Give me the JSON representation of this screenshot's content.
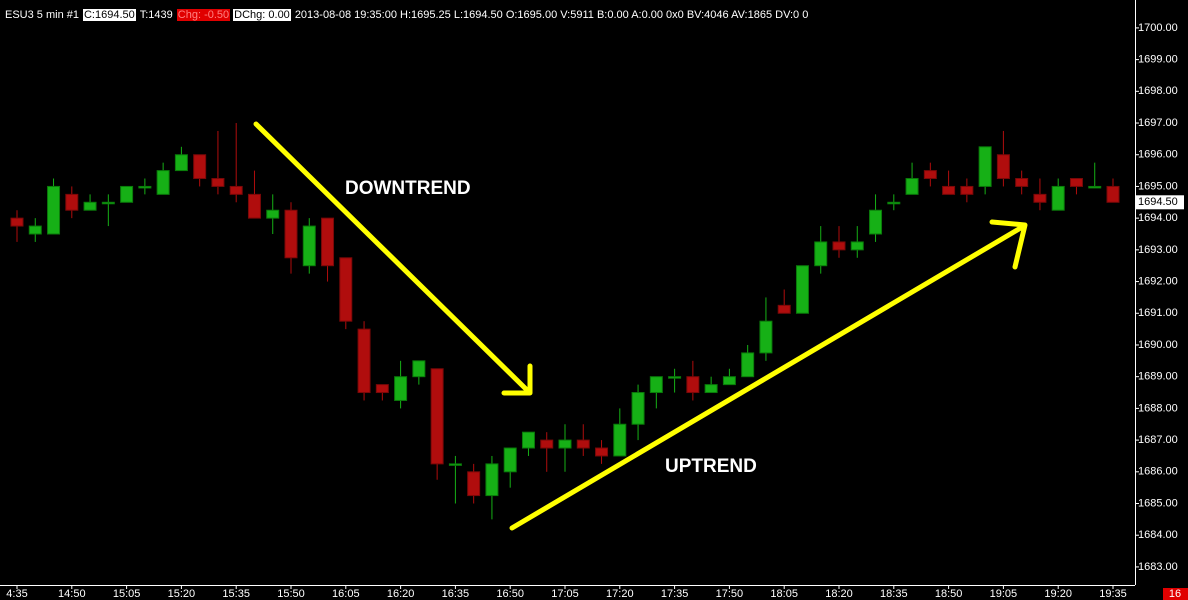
{
  "chart_data": {
    "type": "candlestick",
    "header": {
      "symbol": "ESU3  5 min  #1",
      "close": "C:1694.50",
      "ticks": "T:1439",
      "change": "Chg: -0.50",
      "dchange": "DChg: 0.00",
      "info": "2013-08-08 19:35:00 H:1695.25 L:1694.50 O:1695.00 V:5911 B:0.00 A:0.00 0x0 BV:4046 AV:1865 DV:0 0"
    },
    "annotations": [
      "DOWNTREND",
      "UPTREND"
    ],
    "categories": [
      "4:35",
      null,
      null,
      "14:50",
      null,
      null,
      "15:05",
      null,
      null,
      "15:20",
      null,
      null,
      "15:35",
      null,
      null,
      "15:50",
      null,
      null,
      "16:05",
      null,
      null,
      "16:20",
      null,
      null,
      "16:35",
      null,
      null,
      "16:50",
      null,
      null,
      "17:05",
      null,
      null,
      "17:20",
      null,
      null,
      "17:35",
      null,
      null,
      "17:50",
      null,
      null,
      "18:05",
      null,
      null,
      "18:20",
      null,
      null,
      "18:35",
      null,
      null,
      "18:50",
      null,
      null,
      "19:05",
      null,
      null,
      "19:20",
      null,
      null,
      "19:35"
    ],
    "open": [
      1694.0,
      1693.5,
      1693.5,
      1694.75,
      1694.25,
      1694.5,
      1694.5,
      1695.0,
      1694.75,
      1695.5,
      1696.0,
      1695.25,
      1695.0,
      1694.75,
      1694.0,
      1694.25,
      1692.5,
      1694.0,
      1692.75,
      1690.5,
      1688.75,
      1688.25,
      1689.0,
      1689.25,
      1686.25,
      1686.0,
      1685.25,
      1686.0,
      1686.75,
      1687.0,
      1686.75,
      1687.0,
      1686.75,
      1686.5,
      1687.5,
      1688.5,
      1689.0,
      1689.0,
      1688.5,
      1688.75,
      1689.0,
      1689.75,
      1691.25,
      1691.0,
      1692.5,
      1693.25,
      1693.0,
      1693.5,
      1694.5,
      1694.75,
      1695.5,
      1695.0,
      1695.0,
      1695.0,
      1696.0,
      1695.25,
      1694.75,
      1694.25,
      1695.25,
      1695.0,
      1695.0
    ],
    "high": [
      1694.25,
      1694.0,
      1695.25,
      1695.0,
      1694.75,
      1694.75,
      1695.0,
      1695.25,
      1695.75,
      1696.25,
      1696.0,
      1696.75,
      1697.0,
      1695.5,
      1694.75,
      1694.5,
      1694.0,
      1694.0,
      1692.75,
      1690.75,
      1688.75,
      1689.5,
      1689.5,
      1689.25,
      1686.5,
      1686.25,
      1686.5,
      1686.75,
      1687.25,
      1687.25,
      1687.5,
      1687.5,
      1687.0,
      1688.0,
      1688.75,
      1689.0,
      1689.25,
      1689.5,
      1689.0,
      1689.25,
      1690.0,
      1691.5,
      1691.75,
      1692.5,
      1693.75,
      1693.75,
      1693.75,
      1694.75,
      1694.75,
      1695.75,
      1695.75,
      1695.5,
      1695.25,
      1696.25,
      1696.75,
      1695.5,
      1695.25,
      1695.25,
      1695.25,
      1695.75,
      1695.25
    ],
    "low": [
      1693.25,
      1693.25,
      1693.5,
      1694.0,
      1694.25,
      1693.75,
      1694.5,
      1694.75,
      1694.75,
      1695.5,
      1695.0,
      1694.75,
      1694.5,
      1694.0,
      1693.5,
      1692.25,
      1692.25,
      1692.0,
      1690.5,
      1688.25,
      1688.25,
      1688.0,
      1688.75,
      1685.75,
      1685.0,
      1685.0,
      1684.5,
      1685.5,
      1686.5,
      1686.0,
      1686.0,
      1686.5,
      1686.25,
      1686.5,
      1687.0,
      1688.0,
      1688.5,
      1688.25,
      1688.5,
      1688.75,
      1689.0,
      1689.5,
      1691.0,
      1691.0,
      1692.25,
      1692.75,
      1692.75,
      1693.25,
      1694.25,
      1694.75,
      1695.0,
      1694.75,
      1694.5,
      1694.75,
      1695.0,
      1694.75,
      1694.25,
      1694.25,
      1694.75,
      1695.0,
      1694.5
    ],
    "close": [
      1693.75,
      1693.75,
      1695.0,
      1694.25,
      1694.5,
      1694.5,
      1695.0,
      1695.0,
      1695.5,
      1696.0,
      1695.25,
      1695.0,
      1694.75,
      1694.0,
      1694.25,
      1692.75,
      1693.75,
      1692.5,
      1690.75,
      1688.5,
      1688.5,
      1689.0,
      1689.5,
      1686.25,
      1686.25,
      1685.25,
      1686.25,
      1686.75,
      1687.25,
      1686.75,
      1687.0,
      1686.75,
      1686.5,
      1687.5,
      1688.5,
      1689.0,
      1689.0,
      1688.5,
      1688.75,
      1689.0,
      1689.75,
      1690.75,
      1691.0,
      1692.5,
      1693.25,
      1693.0,
      1693.25,
      1694.25,
      1694.5,
      1695.25,
      1695.25,
      1694.75,
      1694.75,
      1696.25,
      1695.25,
      1695.0,
      1694.5,
      1695.0,
      1695.0,
      1695.0,
      1694.5
    ],
    "up_color": "#16b016",
    "down_color": "#b00d0d",
    "ylim": [
      1682.43,
      1700.88
    ],
    "yticks": [
      {
        "value": 1683,
        "label": "1683.00"
      },
      {
        "value": 1684,
        "label": "1684.00"
      },
      {
        "value": 1685,
        "label": "1685.00"
      },
      {
        "value": 1686,
        "label": "1686.00"
      },
      {
        "value": 1687,
        "label": "1687.00"
      },
      {
        "value": 1688,
        "label": "1688.00"
      },
      {
        "value": 1689,
        "label": "1689.00"
      },
      {
        "value": 1690,
        "label": "1690.00"
      },
      {
        "value": 1691,
        "label": "1691.00"
      },
      {
        "value": 1692,
        "label": "1692.00"
      },
      {
        "value": 1693,
        "label": "1693.00"
      },
      {
        "value": 1694,
        "label": "1694.00"
      },
      {
        "value": 1695,
        "label": "1695.00"
      },
      {
        "value": 1696,
        "label": "1696.00"
      },
      {
        "value": 1697,
        "label": "1697.00"
      },
      {
        "value": 1698,
        "label": "1698.00"
      },
      {
        "value": 1699,
        "label": "1699.00"
      },
      {
        "value": 1700,
        "label": "1700.00"
      }
    ],
    "last_price": {
      "value": 1694.5,
      "label": "1694.50"
    },
    "corner_label": "16",
    "grid": false
  }
}
